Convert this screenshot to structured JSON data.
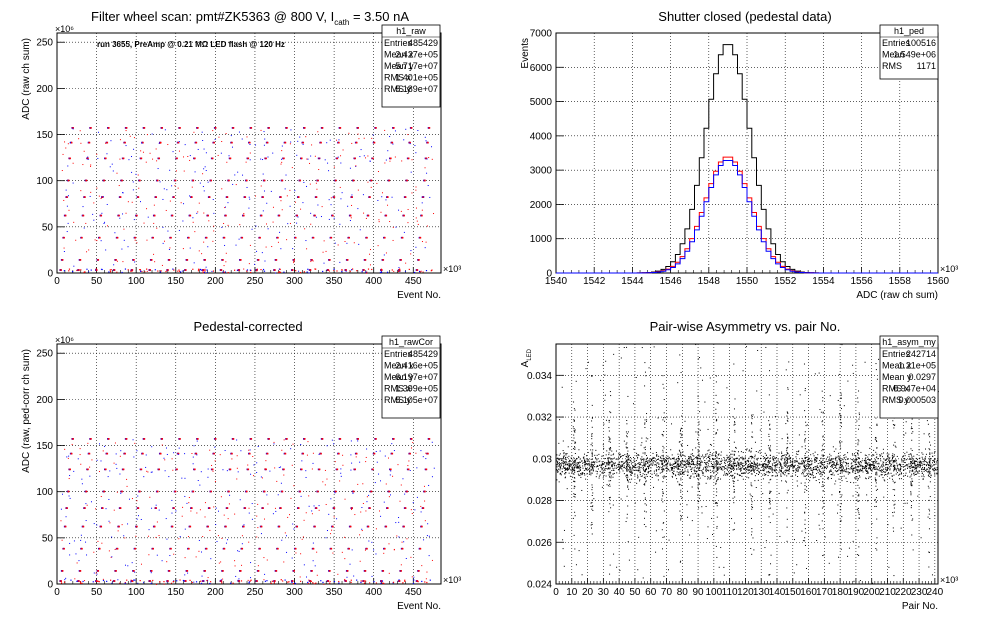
{
  "colors": {
    "raw": "#000000",
    "red": "#ff0000",
    "blue": "#0000ff",
    "grid": "#000000"
  },
  "chart_data": [
    {
      "type": "scatter",
      "id": "raw",
      "title": "Filter wheel scan: pmt#ZK5363 @   800 V, I",
      "title_sub": "cath",
      "title_tail": " = 3.50 nA",
      "annotation": "run 3655, PreAmp @ 0.21 MΩ LED flash @  120 Hz",
      "xlabel": "Event No.",
      "ylabel": "ADC (raw ch sum)",
      "x_exponent": "×10³",
      "y_exponent": "×10⁶",
      "xlim": [
        0,
        485
      ],
      "ylim": [
        0,
        260
      ],
      "xticks": [
        "0",
        "50",
        "100",
        "150",
        "200",
        "250",
        "300",
        "350",
        "400",
        "450"
      ],
      "yticks": [
        "0",
        "50",
        "100",
        "150",
        "200",
        "250"
      ],
      "stats_title": "h1_raw",
      "stats": [
        {
          "k": "Entries",
          "v": "485429"
        },
        {
          "k": "Mean x",
          "v": "2.427e+05"
        },
        {
          "k": "Mean y",
          "v": "5.717e+07"
        },
        {
          "k": "RMS x",
          "v": "1.401e+05"
        },
        {
          "k": "RMS y",
          "v": "5.189e+07"
        }
      ],
      "levels": [
        3,
        14,
        38,
        62,
        82,
        100,
        124,
        141,
        157
      ],
      "cycle_period": 22.5,
      "cycle_count": 21
    },
    {
      "type": "line",
      "id": "ped",
      "title": "Shutter closed (pedestal data)",
      "xlabel": "ADC (raw ch sum)",
      "ylabel": "Events",
      "x_exponent": "×10³",
      "xlim": [
        1540,
        1560
      ],
      "ylim": [
        0,
        7000
      ],
      "xticks": [
        "1540",
        "1542",
        "1544",
        "1546",
        "1548",
        "1550",
        "1552",
        "1554",
        "1556",
        "1558",
        "1560"
      ],
      "yticks": [
        "0",
        "1000",
        "2000",
        "3000",
        "4000",
        "5000",
        "6000",
        "7000"
      ],
      "stats_title": "h1_ped",
      "stats": [
        {
          "k": "Entries",
          "v": "100516"
        },
        {
          "k": "Mean",
          "v": "1.549e+06"
        },
        {
          "k": "RMS",
          "v": "1171"
        }
      ],
      "series": [
        {
          "color": "black",
          "mean": 1549.0,
          "sigma": 1.17,
          "peak": 6700
        },
        {
          "color": "red",
          "mean": 1549.0,
          "sigma": 1.2,
          "peak": 3400
        },
        {
          "color": "blue",
          "mean": 1549.0,
          "sigma": 1.17,
          "peak": 3300
        }
      ]
    },
    {
      "type": "scatter",
      "id": "rawCor",
      "title": "Pedestal-corrected",
      "xlabel": "Event No.",
      "ylabel": "ADC (raw, ped-corr ch sum)",
      "x_exponent": "×10³",
      "y_exponent": "×10⁶",
      "xlim": [
        0,
        485
      ],
      "ylim": [
        0,
        260
      ],
      "xticks": [
        "0",
        "50",
        "100",
        "150",
        "200",
        "250",
        "300",
        "350",
        "400",
        "450"
      ],
      "yticks": [
        "0",
        "50",
        "100",
        "150",
        "200",
        "250"
      ],
      "stats_title": "h1_rawCor",
      "stats": [
        {
          "k": "Entries",
          "v": "485429"
        },
        {
          "k": "Mean x",
          "v": "2.416e+05"
        },
        {
          "k": "Mean y",
          "v": "6.197e+07"
        },
        {
          "k": "RMS x",
          "v": "1.399e+05"
        },
        {
          "k": "RMS y",
          "v": "5.105e+07"
        }
      ],
      "levels": [
        3,
        14,
        38,
        62,
        82,
        100,
        124,
        141,
        157
      ],
      "cycle_period": 22.5,
      "cycle_count": 21
    },
    {
      "type": "scatter",
      "id": "asym",
      "title": "Pair-wise Asymmetry vs. pair No.",
      "xlabel": "Pair No.",
      "ylabel": "A",
      "ylabel_sub": "LED",
      "x_exponent": "×10³",
      "xlim": [
        0,
        242
      ],
      "ylim": [
        0.024,
        0.0355
      ],
      "xticks": [
        "0",
        "10",
        "20",
        "30",
        "40",
        "50",
        "60",
        "70",
        "80",
        "90",
        "100",
        "110",
        "120",
        "130",
        "140",
        "150",
        "160",
        "170",
        "180",
        "190",
        "200",
        "210",
        "220",
        "230",
        "240"
      ],
      "yticks": [
        "0.024",
        "0.026",
        "0.028",
        "0.03",
        "0.032",
        "0.034"
      ],
      "stats_title": "h1_asym_my",
      "stats": [
        {
          "k": "Entries",
          "v": "242714"
        },
        {
          "k": "Mean x",
          "v": "1.21e+05"
        },
        {
          "k": "Mean y",
          "v": "0.0297"
        },
        {
          "k": "RMS x",
          "v": "6.947e+04"
        },
        {
          "k": "RMS y",
          "v": "0.000503"
        }
      ],
      "band_center": 0.0297,
      "band_halfwidth": 0.00055,
      "spike_period": 11.25
    }
  ]
}
